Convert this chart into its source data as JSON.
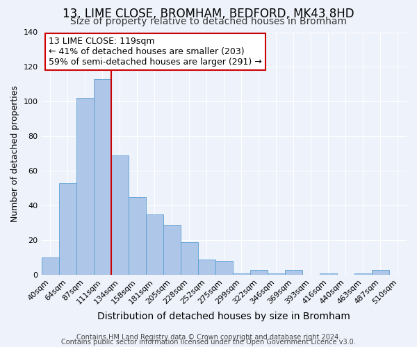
{
  "title": "13, LIME CLOSE, BROMHAM, BEDFORD, MK43 8HD",
  "subtitle": "Size of property relative to detached houses in Bromham",
  "xlabel": "Distribution of detached houses by size in Bromham",
  "ylabel": "Number of detached properties",
  "bar_labels": [
    "40sqm",
    "64sqm",
    "87sqm",
    "111sqm",
    "134sqm",
    "158sqm",
    "181sqm",
    "205sqm",
    "228sqm",
    "252sqm",
    "275sqm",
    "299sqm",
    "322sqm",
    "346sqm",
    "369sqm",
    "393sqm",
    "416sqm",
    "440sqm",
    "463sqm",
    "487sqm",
    "510sqm"
  ],
  "bar_values": [
    10,
    53,
    102,
    113,
    69,
    45,
    35,
    29,
    19,
    9,
    8,
    1,
    3,
    1,
    3,
    0,
    1,
    0,
    1,
    3,
    0
  ],
  "bar_color": "#aec6e8",
  "bar_edge_color": "#5a9fd4",
  "ylim": [
    0,
    140
  ],
  "yticks": [
    0,
    20,
    40,
    60,
    80,
    100,
    120,
    140
  ],
  "vline_x_index": 3,
  "vline_color": "#cc0000",
  "annotation_text": "13 LIME CLOSE: 119sqm\n← 41% of detached houses are smaller (203)\n59% of semi-detached houses are larger (291) →",
  "annotation_box_color": "#ffffff",
  "annotation_box_edge": "#cc0000",
  "footer1": "Contains HM Land Registry data © Crown copyright and database right 2024.",
  "footer2": "Contains public sector information licensed under the Open Government Licence v3.0.",
  "background_color": "#eef2fa",
  "grid_color": "#ffffff",
  "title_fontsize": 12,
  "subtitle_fontsize": 10,
  "xlabel_fontsize": 10,
  "ylabel_fontsize": 9,
  "tick_fontsize": 8,
  "annotation_fontsize": 9,
  "footer_fontsize": 7
}
